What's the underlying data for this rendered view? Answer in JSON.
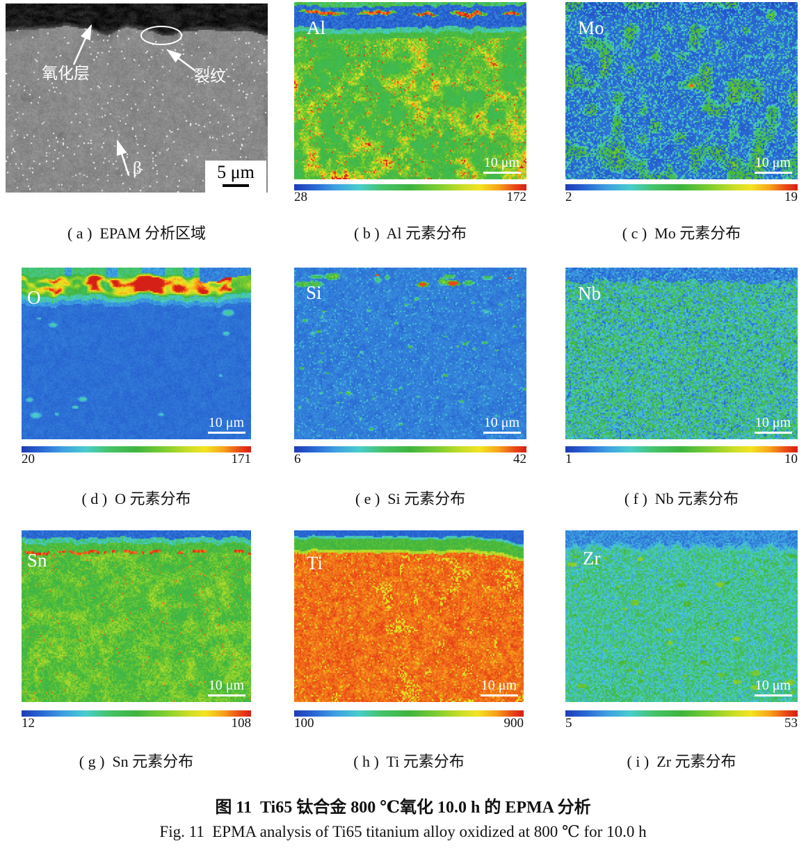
{
  "figure": {
    "caption_cn": "图 11  Ti65 钛合金 800 ℃氧化 10.0 h 的 EPMA 分析",
    "caption_en": "Fig. 11  EPMA analysis of Ti65 titanium alloy oxidized at 800 ℃ for 10.0 h"
  },
  "panels": [
    {
      "id": "a",
      "type": "sem",
      "caption": "( a )  EPAM 分析区域",
      "scale_label": "5 μm",
      "annotations": {
        "oxide_layer": "氧化层",
        "crack": "裂纹",
        "beta": "β"
      }
    },
    {
      "id": "b",
      "element": "Al",
      "caption": "( b )  Al 元素分布",
      "colorbar_min": "28",
      "colorbar_max": "172",
      "scale_label": "10 μm"
    },
    {
      "id": "c",
      "element": "Mo",
      "caption": "( c )  Mo 元素分布",
      "colorbar_min": "2",
      "colorbar_max": "19",
      "scale_label": "10 μm"
    },
    {
      "id": "d",
      "element": "O",
      "caption": "( d )  O 元素分布",
      "colorbar_min": "20",
      "colorbar_max": "171",
      "scale_label": "10 μm"
    },
    {
      "id": "e",
      "element": "Si",
      "caption": "( e )  Si 元素分布",
      "colorbar_min": "6",
      "colorbar_max": "42",
      "scale_label": "10 μm"
    },
    {
      "id": "f",
      "element": "Nb",
      "caption": "( f )  Nb 元素分布",
      "colorbar_min": "1",
      "colorbar_max": "10",
      "scale_label": "10 μm"
    },
    {
      "id": "g",
      "element": "Sn",
      "caption": "( g )  Sn 元素分布",
      "colorbar_min": "12",
      "colorbar_max": "108",
      "scale_label": "10 μm"
    },
    {
      "id": "h",
      "element": "Ti",
      "caption": "( h )  Ti 元素分布",
      "colorbar_min": "100",
      "colorbar_max": "900",
      "scale_label": "10 μm"
    },
    {
      "id": "i",
      "element": "Zr",
      "caption": "( i )  Zr 元素分布",
      "colorbar_min": "5",
      "colorbar_max": "53",
      "scale_label": "10 μm"
    }
  ],
  "colorbar_palette": [
    "#1e3bb5",
    "#2864d2",
    "#3ea0e1",
    "#48cdcd",
    "#46c36a",
    "#3eb43e",
    "#7dcd30",
    "#cdde26",
    "#f3e321",
    "#f7a21a",
    "#ea4818",
    "#d42016"
  ]
}
